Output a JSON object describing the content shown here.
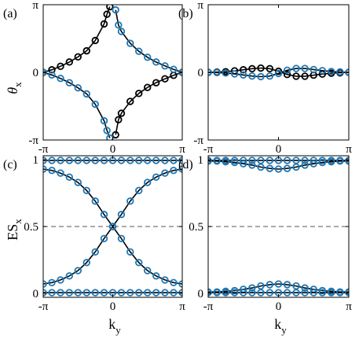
{
  "figure": {
    "ylabel_top": "θ",
    "ylabel_top_sub": "x",
    "ylabel_bottom": "ES",
    "ylabel_bottom_sub": "x",
    "xlabel": "k",
    "xlabel_sub": "y"
  },
  "chart_data": [
    {
      "panel": "(a)",
      "type": "scatter",
      "xlim": [
        -3.1416,
        3.1416
      ],
      "ylim": [
        -3.1416,
        3.1416
      ],
      "x_ticks": [
        "-π",
        "0",
        "π"
      ],
      "y_ticks": [
        "-π",
        "0",
        "π"
      ],
      "colors": {
        "black": "#000000",
        "blue": "#1f77b4"
      },
      "x_points": [
        -3.14,
        -2.75,
        -2.36,
        -1.96,
        -1.57,
        -1.18,
        -0.79,
        -0.39,
        -0.26,
        -0.13,
        0.13,
        0.26,
        0.39,
        0.79,
        1.18,
        1.57,
        1.96,
        2.36,
        2.75,
        3.14
      ],
      "series": [
        {
          "color": "black",
          "shape": "curve-down-right",
          "values": [
            0.0,
            0.12,
            0.28,
            0.48,
            0.72,
            1.0,
            1.48,
            2.25,
            2.7,
            3.05,
            -2.9,
            -2.2,
            -1.9,
            -1.35,
            -0.98,
            -0.7,
            -0.48,
            -0.3,
            -0.14,
            0.0
          ]
        },
        {
          "color": "blue",
          "shape": "curve-mirror",
          "values": [
            0.0,
            -0.12,
            -0.28,
            -0.48,
            -0.72,
            -1.0,
            -1.48,
            -2.25,
            -2.7,
            -3.05,
            2.9,
            2.2,
            1.9,
            1.35,
            0.98,
            0.7,
            0.48,
            0.3,
            0.14,
            0.0
          ]
        }
      ]
    },
    {
      "panel": "(b)",
      "type": "scatter",
      "xlim": [
        -3.1416,
        3.1416
      ],
      "ylim": [
        -3.1416,
        3.1416
      ],
      "x_ticks": [
        "-π",
        "0",
        "π"
      ],
      "y_ticks": [
        "-π",
        "0",
        "π"
      ],
      "x_points": [
        -3.14,
        -2.75,
        -2.36,
        -1.96,
        -1.57,
        -1.18,
        -0.79,
        -0.39,
        0.0,
        0.39,
        0.79,
        1.18,
        1.57,
        1.96,
        2.36,
        2.75,
        3.14
      ],
      "series": [
        {
          "color": "black",
          "values": [
            0.0,
            0.01,
            0.03,
            0.07,
            0.12,
            0.17,
            0.2,
            0.17,
            0.05,
            -0.1,
            -0.18,
            -0.18,
            -0.13,
            -0.08,
            -0.04,
            -0.02,
            0.0
          ]
        },
        {
          "color": "blue",
          "values": [
            0.0,
            -0.01,
            -0.03,
            -0.07,
            -0.12,
            -0.17,
            -0.2,
            -0.17,
            -0.05,
            0.1,
            0.18,
            0.18,
            0.13,
            0.08,
            0.04,
            0.02,
            0.0
          ]
        }
      ]
    },
    {
      "panel": "(c)",
      "type": "scatter",
      "xlim": [
        -3.1416,
        3.1416
      ],
      "ylim": [
        -0.03,
        1.03
      ],
      "x_ticks": [
        "-π",
        "0",
        "π"
      ],
      "y_ticks": [
        "0",
        "0.5",
        "1"
      ],
      "reference_line": 0.5,
      "x_points": [
        -3.14,
        -2.75,
        -2.36,
        -1.96,
        -1.57,
        -1.18,
        -0.79,
        -0.39,
        0.0,
        0.39,
        0.79,
        1.18,
        1.57,
        1.96,
        2.36,
        2.75,
        3.14
      ],
      "series": [
        {
          "color": "blue",
          "values": [
            0.995,
            0.995,
            0.995,
            0.995,
            0.995,
            0.995,
            0.995,
            0.995,
            0.995,
            0.995,
            0.995,
            0.995,
            0.995,
            0.995,
            0.995,
            0.995,
            0.995
          ]
        },
        {
          "color": "blue",
          "values": [
            0.93,
            0.92,
            0.9,
            0.87,
            0.83,
            0.77,
            0.69,
            0.59,
            0.5,
            0.41,
            0.31,
            0.23,
            0.17,
            0.13,
            0.1,
            0.08,
            0.07
          ]
        },
        {
          "color": "blue",
          "values": [
            0.07,
            0.08,
            0.1,
            0.13,
            0.17,
            0.23,
            0.31,
            0.41,
            0.5,
            0.59,
            0.69,
            0.77,
            0.83,
            0.87,
            0.9,
            0.92,
            0.93
          ]
        },
        {
          "color": "blue",
          "values": [
            0.005,
            0.005,
            0.005,
            0.005,
            0.005,
            0.005,
            0.005,
            0.005,
            0.005,
            0.005,
            0.005,
            0.005,
            0.005,
            0.005,
            0.005,
            0.005,
            0.005
          ]
        }
      ]
    },
    {
      "panel": "(d)",
      "type": "scatter",
      "xlim": [
        -3.1416,
        3.1416
      ],
      "ylim": [
        -0.03,
        1.03
      ],
      "x_ticks": [
        "-π",
        "0",
        "π"
      ],
      "y_ticks": [
        "0",
        "0.5",
        "1"
      ],
      "reference_line": 0.5,
      "x_points": [
        -3.14,
        -2.75,
        -2.36,
        -1.96,
        -1.57,
        -1.18,
        -0.79,
        -0.39,
        0.0,
        0.39,
        0.79,
        1.18,
        1.57,
        1.96,
        2.36,
        2.75,
        3.14
      ],
      "series": [
        {
          "color": "blue",
          "values": [
            0.995,
            0.995,
            0.995,
            0.995,
            0.995,
            0.995,
            0.995,
            0.995,
            0.995,
            0.995,
            0.995,
            0.995,
            0.995,
            0.995,
            0.995,
            0.995,
            0.995
          ]
        },
        {
          "color": "blue",
          "values": [
            0.99,
            0.99,
            0.985,
            0.98,
            0.97,
            0.96,
            0.945,
            0.935,
            0.93,
            0.935,
            0.945,
            0.96,
            0.97,
            0.98,
            0.985,
            0.99,
            0.99
          ]
        },
        {
          "color": "blue",
          "values": [
            0.01,
            0.01,
            0.015,
            0.02,
            0.03,
            0.04,
            0.055,
            0.065,
            0.07,
            0.065,
            0.055,
            0.04,
            0.03,
            0.02,
            0.015,
            0.01,
            0.01
          ]
        },
        {
          "color": "blue",
          "values": [
            0.005,
            0.005,
            0.005,
            0.005,
            0.005,
            0.005,
            0.005,
            0.005,
            0.005,
            0.005,
            0.005,
            0.005,
            0.005,
            0.005,
            0.005,
            0.005,
            0.005
          ]
        }
      ]
    }
  ]
}
